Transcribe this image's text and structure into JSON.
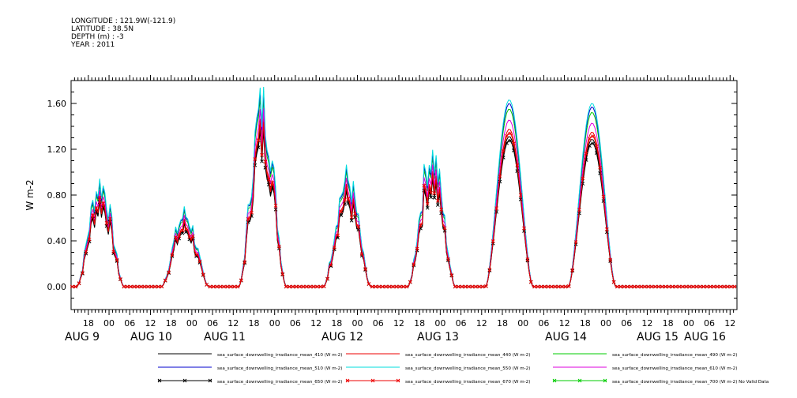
{
  "header": {
    "longitude": "LONGITUDE : 121.9W(-121.9)",
    "latitude": "LATITUDE : 38.5N",
    "depth": "DEPTH (m) : -3",
    "year": "YEAR : 2011"
  },
  "chart_data": {
    "type": "line",
    "ylabel": "W m-2",
    "ylim": [
      -0.2,
      1.8
    ],
    "y_ticks": [
      "0.00",
      "0.40",
      "0.80",
      "1.20",
      "1.60"
    ],
    "y_tick_values": [
      0.0,
      0.4,
      0.8,
      1.2,
      1.6
    ],
    "x_hour_ticks": [
      "18",
      "00",
      "06",
      "12",
      "18",
      "00",
      "06",
      "12",
      "18",
      "00",
      "06",
      "12",
      "18",
      "00",
      "06",
      "12",
      "18",
      "00",
      "06",
      "12",
      "18",
      "00",
      "06",
      "12",
      "18",
      "00",
      "06",
      "12",
      "18",
      "00",
      "06",
      "12"
    ],
    "x_day_labels": [
      "AUG  9",
      "AUG 10",
      "AUG 11",
      "AUG 12",
      "AUG 13",
      "AUG 14",
      "AUG 15",
      "AUG 16"
    ],
    "x_range_hours": [
      "2011-08-08T13:00",
      "2011-08-16T14:00"
    ],
    "grid": false,
    "legend_placement": "bottom",
    "day_peaks": [
      {
        "date": "2011-08-09",
        "peak_hour": 21.5,
        "irr_410": 0.78,
        "irr_510": 0.94,
        "noisy": true
      },
      {
        "date": "2011-08-10",
        "peak_hour": 22.0,
        "irr_410": 0.55,
        "irr_510": 0.66,
        "noisy": true
      },
      {
        "date": "2011-08-11",
        "peak_hour": 20.5,
        "irr_410": 1.38,
        "irr_510": 1.65,
        "noisy": true
      },
      {
        "date": "2011-08-12",
        "peak_hour": 21.0,
        "irr_410": 0.82,
        "irr_510": 0.98,
        "noisy": true
      },
      {
        "date": "2011-08-13",
        "peak_hour": 21.5,
        "irr_410": 1.02,
        "irr_510": 1.2,
        "noisy": true
      },
      {
        "date": "2011-08-14",
        "peak_hour": 20.0,
        "irr_410": 1.28,
        "irr_510": 1.6,
        "noisy": false
      },
      {
        "date": "2011-08-15",
        "peak_hour": 20.0,
        "irr_410": 1.26,
        "irr_510": 1.57,
        "noisy": false
      }
    ],
    "series": [
      {
        "name": "sea_surface_downwelling_irradiance_mean_410 (W m-2)",
        "color": "#000000",
        "ratio": 0.82,
        "marker": "none"
      },
      {
        "name": "sea_surface_downwelling_irradiance_mean_440 (W m-2)",
        "color": "#ee0000",
        "ratio": 0.86,
        "marker": "none"
      },
      {
        "name": "sea_surface_downwelling_irradiance_mean_490 (W m-2)",
        "color": "#00cc00",
        "ratio": 0.97,
        "marker": "none"
      },
      {
        "name": "sea_surface_downwelling_irradiance_mean_510 (W m-2)",
        "color": "#0000cc",
        "ratio": 1.0,
        "marker": "none"
      },
      {
        "name": "sea_surface_downwelling_irradiance_mean_550 (W m-2)",
        "color": "#00dddd",
        "ratio": 1.02,
        "marker": "none"
      },
      {
        "name": "sea_surface_downwelling_irradiance_mean_610 (W m-2)",
        "color": "#dd00dd",
        "ratio": 0.91,
        "marker": "none"
      },
      {
        "name": "sea_surface_downwelling_irradiance_mean_650 (W m-2)",
        "color": "#000000",
        "ratio": 0.8,
        "marker": "x"
      },
      {
        "name": "sea_surface_downwelling_irradiance_mean_670 (W m-2)",
        "color": "#ee0000",
        "ratio": 0.84,
        "marker": "x"
      },
      {
        "name": "sea_surface_downwelling_irradiance_mean_700 (W m-2) No Valid Data",
        "color": "#00cc00",
        "ratio": 0.0,
        "marker": "x"
      }
    ]
  }
}
